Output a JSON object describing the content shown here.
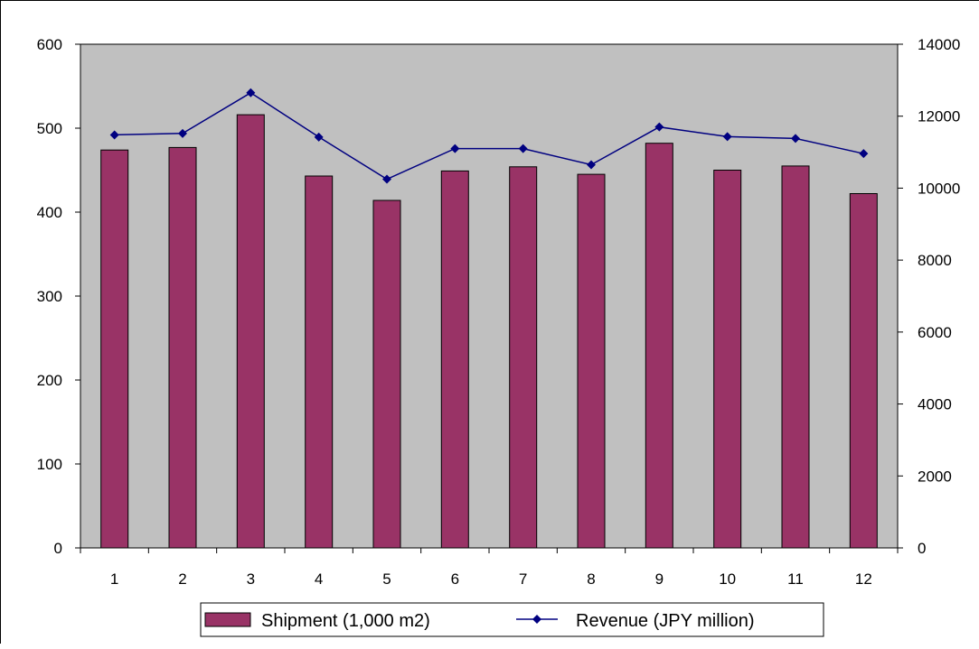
{
  "chart_data": {
    "type": "bar",
    "categories": [
      "1",
      "2",
      "3",
      "4",
      "5",
      "6",
      "7",
      "8",
      "9",
      "10",
      "11",
      "12"
    ],
    "series": [
      {
        "name": "Shipment (1,000 m2)",
        "type": "bar",
        "axis": "left",
        "color": "#993366",
        "values": [
          474,
          477,
          516,
          443,
          414,
          449,
          454,
          445,
          482,
          450,
          455,
          422
        ]
      },
      {
        "name": "Revenue (JPY million)",
        "type": "line",
        "axis": "right",
        "color": "#000080",
        "values": [
          11480,
          11520,
          12650,
          11420,
          10250,
          11100,
          11100,
          10650,
          11700,
          11430,
          11380,
          10960
        ]
      }
    ],
    "y_left": {
      "lim": [
        0,
        600
      ],
      "ticks": [
        "0",
        "100",
        "200",
        "300",
        "400",
        "500",
        "600"
      ]
    },
    "y_right": {
      "lim": [
        0,
        14000
      ],
      "ticks": [
        "0",
        "2000",
        "4000",
        "6000",
        "8000",
        "10000",
        "12000",
        "14000"
      ]
    },
    "grid": false,
    "plot_background": "#c0c0c0",
    "legend": {
      "position": "bottom",
      "items": [
        "Shipment (1,000 m2)",
        "Revenue (JPY million)"
      ]
    }
  }
}
